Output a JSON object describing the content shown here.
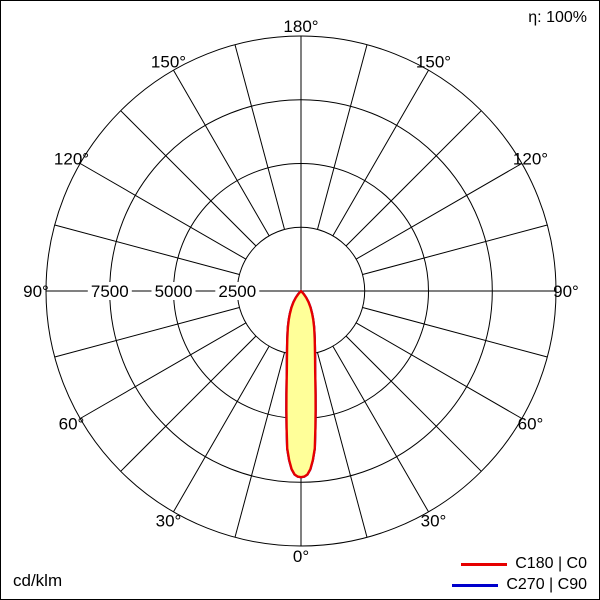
{
  "chart_data": {
    "type": "polar",
    "unit": "cd/klm",
    "efficiency": "η: 100%",
    "max_value": 10000,
    "ring_values": [
      2500,
      5000,
      7500,
      10000
    ],
    "ring_axis_labels": [
      7500,
      5000,
      2500
    ],
    "angle_labels_deg": [
      0,
      30,
      60,
      90,
      120,
      150,
      180
    ],
    "spoke_step_deg": 15,
    "grid_color": "#000000",
    "series": [
      {
        "name": "C270 | C90",
        "color": "#0000cc",
        "fill": "none",
        "points": [
          [
            0,
            7300
          ],
          [
            1,
            7280
          ],
          [
            2,
            7200
          ],
          [
            3,
            7000
          ],
          [
            4,
            6650
          ],
          [
            5,
            6200
          ],
          [
            6,
            5400
          ],
          [
            7,
            4700
          ],
          [
            8,
            4100
          ],
          [
            9,
            3600
          ],
          [
            10,
            3200
          ],
          [
            12,
            2650
          ],
          [
            14,
            2250
          ],
          [
            16,
            1950
          ],
          [
            18,
            1700
          ],
          [
            20,
            1500
          ],
          [
            23,
            1230
          ],
          [
            26,
            1000
          ],
          [
            30,
            750
          ],
          [
            34,
            530
          ],
          [
            38,
            330
          ],
          [
            42,
            160
          ],
          [
            46,
            0
          ]
        ]
      },
      {
        "name": "C180 | C0",
        "color": "#e60000",
        "fill": "#ffff99",
        "points": [
          [
            0,
            7300
          ],
          [
            1,
            7280
          ],
          [
            2,
            7200
          ],
          [
            3,
            7000
          ],
          [
            4,
            6650
          ],
          [
            5,
            6200
          ],
          [
            6,
            5400
          ],
          [
            7,
            4700
          ],
          [
            8,
            4100
          ],
          [
            9,
            3600
          ],
          [
            10,
            3200
          ],
          [
            12,
            2650
          ],
          [
            14,
            2250
          ],
          [
            16,
            1950
          ],
          [
            18,
            1700
          ],
          [
            20,
            1500
          ],
          [
            23,
            1230
          ],
          [
            26,
            1000
          ],
          [
            30,
            750
          ],
          [
            34,
            530
          ],
          [
            38,
            330
          ],
          [
            42,
            160
          ],
          [
            46,
            0
          ]
        ]
      }
    ]
  }
}
